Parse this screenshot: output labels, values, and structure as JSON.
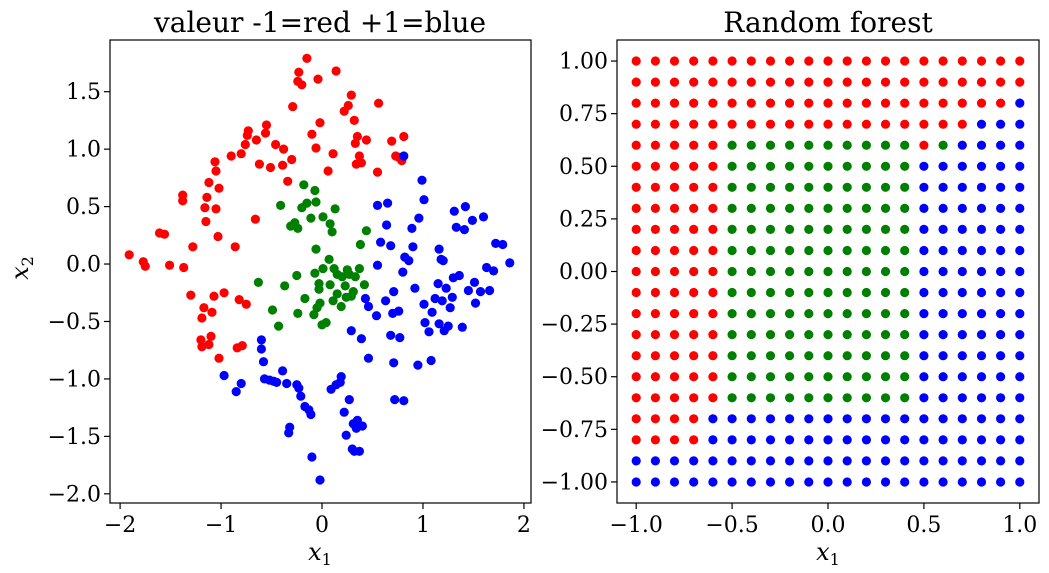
{
  "chart_data": [
    {
      "type": "scatter",
      "title": "valeur -1=red +1=blue",
      "xlabel": "x",
      "xlabel_sub": "1",
      "ylabel": "x",
      "ylabel_sub": "2",
      "xlim": [
        -2.1,
        2.07
      ],
      "ylim": [
        -2.08,
        1.95
      ],
      "xticks": [
        -2,
        -1,
        0,
        1,
        2
      ],
      "xtick_labels": [
        "−2",
        "−1",
        "0",
        "1",
        "2"
      ],
      "yticks": [
        -2.0,
        -1.5,
        -1.0,
        -0.5,
        0.0,
        0.5,
        1.0,
        1.5
      ],
      "ytick_labels": [
        "−2.0",
        "−1.5",
        "−1.0",
        "−0.5",
        "0.0",
        "0.5",
        "1.0",
        "1.5"
      ],
      "colors": {
        "red": "#ff0000",
        "green": "#008000",
        "blue": "#0000ff"
      },
      "series": [
        {
          "name": "red",
          "color": "red",
          "points": [
            [
              -1.91,
              0.08
            ],
            [
              -1.77,
              0.02
            ],
            [
              -1.75,
              -0.02
            ],
            [
              -1.61,
              0.27
            ],
            [
              -1.56,
              0.26
            ],
            [
              -1.51,
              -0.01
            ],
            [
              -1.38,
              0.55
            ],
            [
              -1.38,
              0.6
            ],
            [
              -1.37,
              -0.03
            ],
            [
              -1.28,
              0.15
            ],
            [
              -1.3,
              -0.27
            ],
            [
              -1.19,
              -0.47
            ],
            [
              -1.2,
              -0.66
            ],
            [
              -1.19,
              -0.72
            ],
            [
              -1.17,
              -0.38
            ],
            [
              -1.15,
              0.37
            ],
            [
              -1.16,
              0.49
            ],
            [
              -1.14,
              0.58
            ],
            [
              -1.12,
              0.71
            ],
            [
              -1.12,
              -0.7
            ],
            [
              -1.1,
              -0.63
            ],
            [
              -1.09,
              -0.42
            ],
            [
              -1.07,
              -0.28
            ],
            [
              -1.05,
              0.81
            ],
            [
              -1.06,
              0.89
            ],
            [
              -1.05,
              0.48
            ],
            [
              -1.02,
              0.66
            ],
            [
              -1.02,
              -0.82
            ],
            [
              -1.03,
              0.24
            ],
            [
              -0.97,
              -0.25
            ],
            [
              -0.9,
              0.94
            ],
            [
              -0.86,
              0.15
            ],
            [
              -0.84,
              -0.73
            ],
            [
              -0.82,
              -0.31
            ],
            [
              -0.8,
              0.96
            ],
            [
              -0.79,
              -0.71
            ],
            [
              -0.76,
              1.04
            ],
            [
              -0.74,
              1.12
            ],
            [
              -0.73,
              1.16
            ],
            [
              -0.75,
              -0.35
            ],
            [
              -0.65,
              1.08
            ],
            [
              -0.66,
              0.39
            ],
            [
              -0.62,
              0.87
            ],
            [
              -0.56,
              1.14
            ],
            [
              -0.55,
              1.21
            ],
            [
              -0.51,
              0.84
            ],
            [
              -0.46,
              1.04
            ],
            [
              -0.39,
              0.86
            ],
            [
              -0.38,
              1.0
            ],
            [
              -0.34,
              0.72
            ],
            [
              -0.29,
              1.37
            ],
            [
              -0.3,
              0.91
            ],
            [
              -0.24,
              1.59
            ],
            [
              -0.23,
              1.67
            ],
            [
              -0.2,
              1.56
            ],
            [
              -0.15,
              1.79
            ],
            [
              -0.1,
              1.13
            ],
            [
              -0.06,
              1.01
            ],
            [
              -0.04,
              1.61
            ],
            [
              -0.02,
              1.23
            ],
            [
              0.06,
              0.81
            ],
            [
              0.11,
              0.96
            ],
            [
              0.14,
              1.68
            ],
            [
              0.22,
              1.33
            ],
            [
              0.26,
              1.38
            ],
            [
              0.29,
              1.47
            ],
            [
              0.32,
              1.25
            ],
            [
              0.35,
              1.11
            ],
            [
              0.33,
              1.05
            ],
            [
              0.37,
              0.94
            ],
            [
              0.34,
              0.87
            ],
            [
              0.39,
              0.88
            ],
            [
              0.44,
              1.08
            ],
            [
              0.56,
              1.4
            ],
            [
              0.55,
              0.8
            ],
            [
              0.69,
              1.07
            ],
            [
              0.73,
              0.94
            ],
            [
              0.76,
              0.93
            ],
            [
              0.79,
              0.9
            ],
            [
              0.81,
              1.11
            ]
          ]
        },
        {
          "name": "green",
          "color": "green",
          "points": [
            [
              -0.41,
              0.51
            ],
            [
              -0.31,
              0.33
            ],
            [
              -0.27,
              0.36
            ],
            [
              -0.24,
              0.31
            ],
            [
              -0.2,
              0.49
            ],
            [
              -0.18,
              0.69
            ],
            [
              -0.15,
              0.53
            ],
            [
              -0.11,
              0.4
            ],
            [
              -0.07,
              0.64
            ],
            [
              -0.06,
              0.54
            ],
            [
              -0.06,
              0.13
            ],
            [
              0.01,
              0.41
            ],
            [
              0.08,
              0.35
            ],
            [
              0.1,
              0.28
            ],
            [
              0.13,
              0.48
            ],
            [
              0.07,
              0.04
            ],
            [
              0.01,
              -0.04
            ],
            [
              -0.03,
              -0.17
            ],
            [
              -0.03,
              -0.22
            ],
            [
              -0.07,
              -0.08
            ],
            [
              0.08,
              -0.18
            ],
            [
              0.12,
              -0.04
            ],
            [
              0.15,
              -0.09
            ],
            [
              0.2,
              -0.11
            ],
            [
              0.23,
              -0.19
            ],
            [
              0.25,
              -0.05
            ],
            [
              0.27,
              -0.09
            ],
            [
              0.33,
              -0.11
            ],
            [
              0.37,
              -0.04
            ],
            [
              0.38,
              0.17
            ],
            [
              0.15,
              -0.26
            ],
            [
              0.24,
              -0.29
            ],
            [
              0.31,
              -0.24
            ],
            [
              0.42,
              -0.18
            ],
            [
              0.44,
              0.29
            ],
            [
              -0.25,
              -0.1
            ],
            [
              -0.37,
              -0.19
            ],
            [
              -0.63,
              -0.16
            ],
            [
              -0.49,
              -0.4
            ],
            [
              -0.43,
              -0.54
            ],
            [
              -0.24,
              -0.43
            ],
            [
              -0.17,
              -0.3
            ],
            [
              -0.08,
              -0.44
            ],
            [
              -0.05,
              -0.38
            ],
            [
              -0.02,
              -0.34
            ],
            [
              0.04,
              -0.51
            ],
            [
              0.0,
              -0.53
            ],
            [
              0.11,
              -0.32
            ],
            [
              0.19,
              -0.37
            ],
            [
              0.29,
              -0.28
            ]
          ]
        },
        {
          "name": "blue",
          "color": "blue",
          "points": [
            [
              -0.97,
              -0.97
            ],
            [
              -0.85,
              -1.11
            ],
            [
              -0.8,
              -1.04
            ],
            [
              -0.6,
              -0.66
            ],
            [
              -0.6,
              -0.74
            ],
            [
              -0.58,
              -0.85
            ],
            [
              -0.57,
              -1.0
            ],
            [
              -0.52,
              -1.01
            ],
            [
              -0.48,
              -1.02
            ],
            [
              -0.45,
              -1.03
            ],
            [
              -0.39,
              -0.93
            ],
            [
              -0.35,
              -1.04
            ],
            [
              -0.33,
              -1.47
            ],
            [
              -0.32,
              -1.42
            ],
            [
              -0.25,
              -1.05
            ],
            [
              -0.21,
              -1.15
            ],
            [
              -0.23,
              -1.08
            ],
            [
              -0.17,
              -1.24
            ],
            [
              -0.13,
              -1.27
            ],
            [
              -0.11,
              -1.31
            ],
            [
              -0.1,
              -1.68
            ],
            [
              -0.02,
              -1.88
            ],
            [
              0.09,
              -1.09
            ],
            [
              0.14,
              -1.05
            ],
            [
              0.19,
              -0.98
            ],
            [
              0.22,
              -1.29
            ],
            [
              0.24,
              -1.49
            ],
            [
              0.27,
              -1.18
            ],
            [
              0.3,
              -1.61
            ],
            [
              0.32,
              -1.63
            ],
            [
              0.35,
              -1.36
            ],
            [
              0.34,
              -1.43
            ],
            [
              0.39,
              -0.65
            ],
            [
              0.4,
              -1.41
            ],
            [
              0.37,
              -1.63
            ],
            [
              0.18,
              -1.03
            ],
            [
              0.31,
              -1.39
            ],
            [
              0.43,
              -0.3
            ],
            [
              0.46,
              -0.37
            ],
            [
              0.55,
              0.51
            ],
            [
              0.55,
              -0.01
            ],
            [
              0.58,
              0.19
            ],
            [
              0.64,
              0.34
            ],
            [
              0.68,
              0.16
            ],
            [
              0.65,
              0.53
            ],
            [
              0.68,
              -0.62
            ],
            [
              0.7,
              -0.43
            ],
            [
              0.71,
              -0.86
            ],
            [
              0.77,
              -0.64
            ],
            [
              0.76,
              -0.41
            ],
            [
              0.81,
              -1.19
            ],
            [
              0.8,
              -0.07
            ],
            [
              0.82,
              0.06
            ],
            [
              0.86,
              0.03
            ],
            [
              0.89,
              0.31
            ],
            [
              0.92,
              -0.21
            ],
            [
              0.96,
              0.4
            ],
            [
              0.99,
              0.73
            ],
            [
              0.95,
              -0.88
            ],
            [
              1.01,
              -0.35
            ],
            [
              1.02,
              -0.51
            ],
            [
              1.06,
              -0.59
            ],
            [
              1.08,
              -0.84
            ],
            [
              1.09,
              -0.42
            ],
            [
              1.12,
              -0.3
            ],
            [
              1.15,
              -0.17
            ],
            [
              1.16,
              0.13
            ],
            [
              1.18,
              0.04
            ],
            [
              1.16,
              -0.52
            ],
            [
              1.19,
              -0.32
            ],
            [
              1.21,
              -0.58
            ],
            [
              1.23,
              -0.21
            ],
            [
              1.25,
              -0.54
            ],
            [
              1.27,
              -0.38
            ],
            [
              1.29,
              -0.29
            ],
            [
              1.31,
              0.46
            ],
            [
              1.33,
              0.32
            ],
            [
              1.36,
              -0.1
            ],
            [
              1.39,
              -0.55
            ],
            [
              1.41,
              0.3
            ],
            [
              1.42,
              0.5
            ],
            [
              1.45,
              -0.23
            ],
            [
              1.49,
              0.38
            ],
            [
              1.51,
              -0.16
            ],
            [
              1.52,
              -0.34
            ],
            [
              1.57,
              -0.24
            ],
            [
              1.6,
              0.41
            ],
            [
              1.63,
              -0.03
            ],
            [
              1.66,
              -0.23
            ],
            [
              1.7,
              -0.06
            ],
            [
              1.72,
              0.18
            ],
            [
              1.79,
              0.17
            ],
            [
              1.86,
              0.01
            ],
            [
              0.46,
              -0.82
            ],
            [
              0.72,
              -1.18
            ],
            [
              0.29,
              -0.58
            ],
            [
              0.54,
              -0.45
            ],
            [
              0.63,
              -0.32
            ],
            [
              0.71,
              -0.24
            ],
            [
              0.9,
              0.15
            ],
            [
              0.81,
              0.94
            ],
            [
              1.01,
              0.56
            ],
            [
              1.2,
              0.03
            ],
            [
              1.3,
              -0.12
            ]
          ]
        }
      ]
    },
    {
      "type": "scatter",
      "title": "Random forest",
      "xlabel": "x",
      "xlabel_sub": "1",
      "xlim": [
        -1.1,
        1.1
      ],
      "ylim": [
        -1.1,
        1.1
      ],
      "xticks": [
        -1.0,
        -0.5,
        0.0,
        0.5,
        1.0
      ],
      "xtick_labels": [
        "−1.0",
        "−0.5",
        "0.0",
        "0.5",
        "1.0"
      ],
      "yticks": [
        -1.0,
        -0.75,
        -0.5,
        -0.25,
        0.0,
        0.25,
        0.5,
        0.75,
        1.0
      ],
      "ytick_labels": [
        "−1.00",
        "−0.75",
        "−0.50",
        "−0.25",
        "0.00",
        "0.25",
        "0.50",
        "0.75",
        "1.00"
      ],
      "grid_x": [
        -1.0,
        -0.9,
        -0.8,
        -0.7,
        -0.6,
        -0.5,
        -0.4,
        -0.3,
        -0.2,
        -0.1,
        0.0,
        0.1,
        0.2,
        0.3,
        0.4,
        0.5,
        0.6,
        0.7,
        0.8,
        0.9,
        1.0
      ],
      "grid_y": [
        1.0,
        0.9,
        0.8,
        0.7,
        0.6,
        0.5,
        0.4,
        0.3,
        0.2,
        0.1,
        0.0,
        -0.1,
        -0.2,
        -0.3,
        -0.4,
        -0.5,
        -0.6,
        -0.7,
        -0.8,
        -0.9,
        -1.0
      ],
      "colors": {
        "R": "#ff0000",
        "G": "#008000",
        "B": "#0000ff"
      },
      "class_grid": [
        "RRRRRRRRRRRRRRRRRRRRR",
        "RRRRRRRRRRRRRRRRRRRRR",
        "RRRRRRRRRRRRRRRRRRRRB",
        "RRRRRRRRRRRRRRRRRRBBB",
        "RRRRRGGGGGGGGGGRGBBBB",
        "RRRRRGGGGGGGGGGBBBBBB",
        "RRRRRGGGGGGGGGGBBBBBB",
        "RRRRRGGGGGGGGGGBBBBBB",
        "RRRRRGGGGGGGGGGBBBBBB",
        "RRRRRGGGGGGGGGGBBBBBB",
        "RRRRRGGGGGGGGGGBBBBBB",
        "RRRRRGGGGGGGGGGBBBBBB",
        "RRRRRGGGGGGGGGGBBBBBB",
        "RRRRRGGGGGGGGGGBBBBBB",
        "RRRRRGGGGGGGGGGBBBBBB",
        "RRRRRGGGGGGGGGGBBBBBB",
        "RRRRRGGGGGGGGGGBBBBBB",
        "RRRRBBBBBBBBBBBBBBBBB",
        "RRRRBBBBBBBBBBBBBBBBB",
        "BBBBBBBBBBBBBBBBBBBBB",
        "BBBBBBBBBBBBBBBBBBBBB"
      ]
    }
  ]
}
